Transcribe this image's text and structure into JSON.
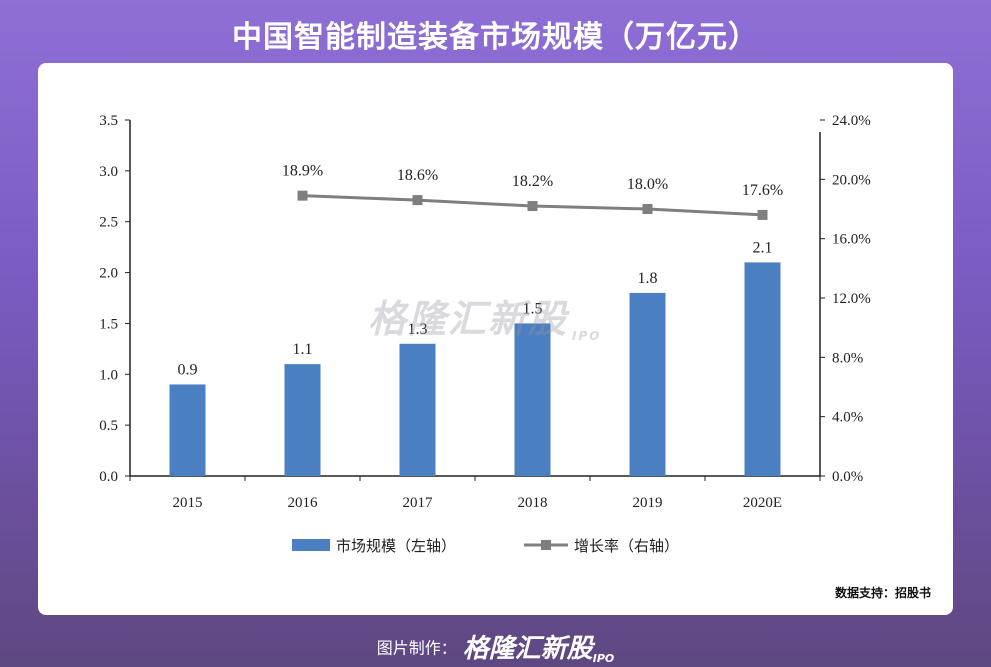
{
  "page": {
    "title": "中国智能制造装备市场规模（万亿元）",
    "source": "数据支持：招股书",
    "watermark": "格隆汇新股",
    "watermark_sub": "IPO",
    "footer_label": "图片制作：",
    "footer_brand": "格隆汇新股",
    "footer_ipo": "IPO"
  },
  "chart_data": {
    "type": "bar",
    "categories": [
      "2015",
      "2016",
      "2017",
      "2018",
      "2019",
      "2020E"
    ],
    "series": [
      {
        "name": "市场规模（左轴）",
        "type": "bar",
        "axis": "left",
        "values": [
          0.9,
          1.1,
          1.3,
          1.5,
          1.8,
          2.1
        ],
        "labels": [
          "0.9",
          "1.1",
          "1.3",
          "1.5",
          "1.8",
          "2.1"
        ],
        "color": "#4a7fc1"
      },
      {
        "name": "增长率（右轴）",
        "type": "line",
        "axis": "right",
        "values": [
          null,
          18.9,
          18.6,
          18.2,
          18.0,
          17.6
        ],
        "labels": [
          null,
          "18.9%",
          "18.6%",
          "18.2%",
          "18.0%",
          "17.6%"
        ],
        "color": "#7f7f7f"
      }
    ],
    "y_left": {
      "ylim": [
        0,
        3.5
      ],
      "ticks": [
        "0.0",
        "0.5",
        "1.0",
        "1.5",
        "2.0",
        "2.5",
        "3.0",
        "3.5"
      ]
    },
    "y_right": {
      "ylim": [
        0,
        24
      ],
      "ticks": [
        "0.0%",
        "4.0%",
        "8.0%",
        "12.0%",
        "16.0%",
        "20.0%",
        "24.0%"
      ]
    },
    "legend_position": "bottom-center",
    "grid": false
  }
}
